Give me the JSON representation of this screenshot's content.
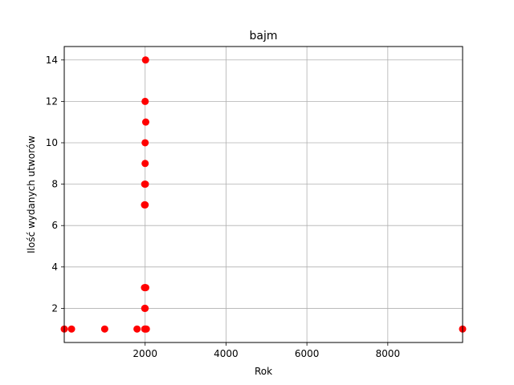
{
  "chart_data": {
    "type": "scatter",
    "title": "bajm",
    "xlabel": "Rok",
    "ylabel": "Ilość wydanych utworów",
    "xlim": [
      0,
      9850
    ],
    "ylim": [
      0.35,
      14.65
    ],
    "xticks": [
      2000,
      4000,
      6000,
      8000
    ],
    "yticks": [
      2,
      4,
      6,
      8,
      10,
      12,
      14
    ],
    "grid": true,
    "marker_color": "#ff0000",
    "points": [
      {
        "x": 0,
        "y": 1
      },
      {
        "x": 180,
        "y": 1
      },
      {
        "x": 1000,
        "y": 1
      },
      {
        "x": 1800,
        "y": 1
      },
      {
        "x": 1990,
        "y": 1
      },
      {
        "x": 2000,
        "y": 1
      },
      {
        "x": 2030,
        "y": 1
      },
      {
        "x": 9850,
        "y": 1
      },
      {
        "x": 1990,
        "y": 2
      },
      {
        "x": 2000,
        "y": 2
      },
      {
        "x": 1985,
        "y": 3
      },
      {
        "x": 2000,
        "y": 3
      },
      {
        "x": 2015,
        "y": 3
      },
      {
        "x": 1985,
        "y": 7
      },
      {
        "x": 2000,
        "y": 7
      },
      {
        "x": 1990,
        "y": 8
      },
      {
        "x": 2005,
        "y": 8
      },
      {
        "x": 2000,
        "y": 9
      },
      {
        "x": 2000,
        "y": 10
      },
      {
        "x": 2015,
        "y": 11
      },
      {
        "x": 2000,
        "y": 12
      },
      {
        "x": 2010,
        "y": 14
      }
    ]
  }
}
